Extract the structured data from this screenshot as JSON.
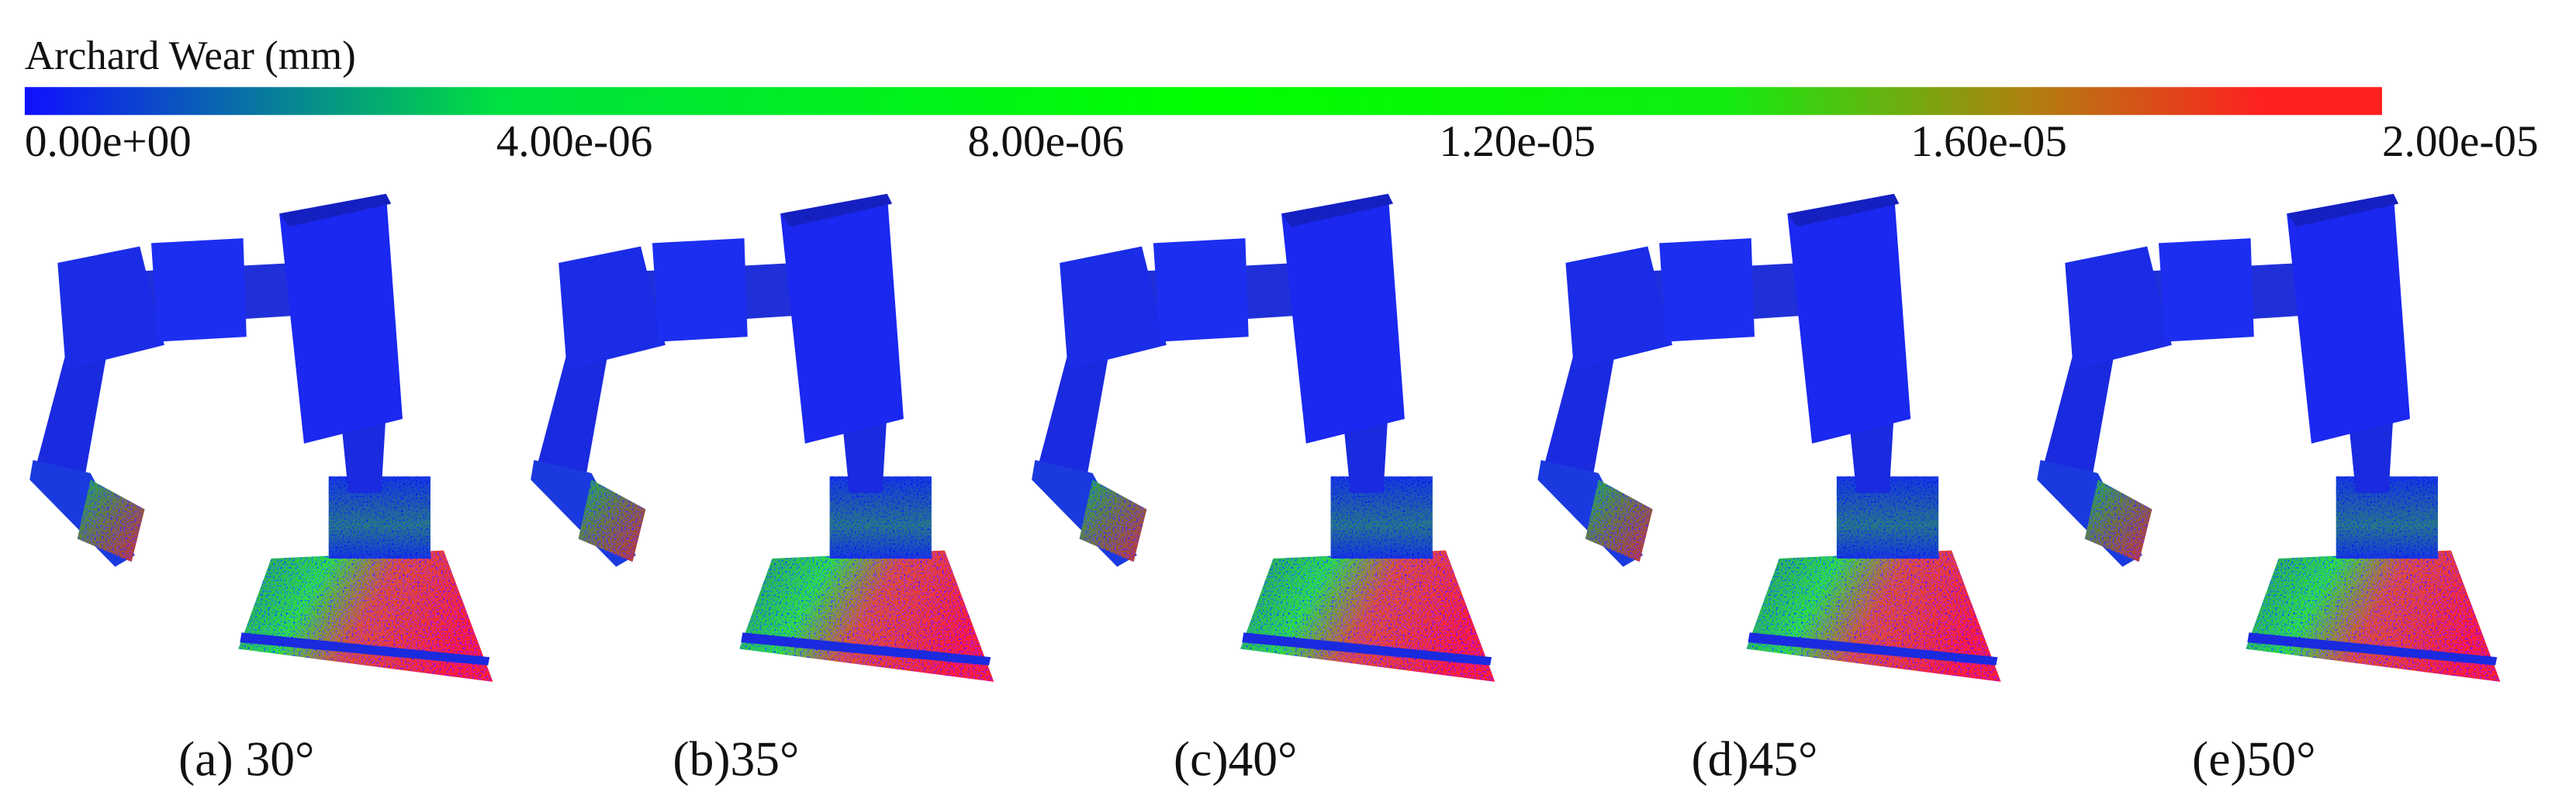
{
  "colorbar": {
    "title": "Archard Wear (mm)",
    "range": [
      0,
      2e-05
    ],
    "ticks": [
      {
        "value": 0,
        "label": "0.00e+00"
      },
      {
        "value": 4e-06,
        "label": "4.00e-06"
      },
      {
        "value": 8e-06,
        "label": "8.00e-06"
      },
      {
        "value": 1.2e-05,
        "label": "1.20e-05"
      },
      {
        "value": 1.6e-05,
        "label": "1.60e-05"
      },
      {
        "value": 2e-05,
        "label": "2.00e-05"
      }
    ]
  },
  "panels": [
    {
      "label": "(a) 30°"
    },
    {
      "label": "(b)35°"
    },
    {
      "label": "(c)40°"
    },
    {
      "label": "(d)45°"
    },
    {
      "label": "(e)50°"
    }
  ]
}
